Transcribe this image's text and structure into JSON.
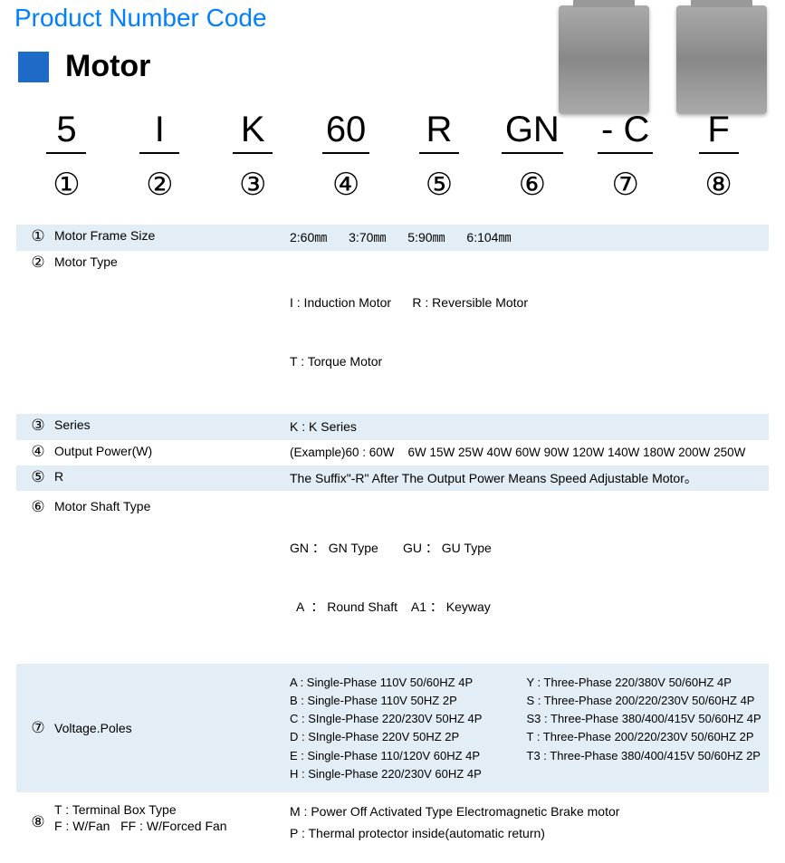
{
  "page_title": "Product Number Code",
  "section_title": "Motor",
  "code_parts": [
    {
      "char": "5",
      "circ": "①"
    },
    {
      "char": "I",
      "circ": "②"
    },
    {
      "char": "K",
      "circ": "③"
    },
    {
      "char": "60",
      "circ": "④"
    },
    {
      "char": "R",
      "circ": "⑤"
    },
    {
      "char": "GN",
      "circ": "⑥"
    },
    {
      "char": "- C",
      "circ": "⑦"
    },
    {
      "char": "F",
      "circ": "⑧"
    }
  ],
  "r1": {
    "idx": "①",
    "label": "Motor Frame Size",
    "v1": "2:60㎜",
    "v2": "3:70㎜",
    "v3": "5:90㎜",
    "v4": "6:104㎜"
  },
  "r2": {
    "idx": "②",
    "label": "Motor Type",
    "l1": "I : Induction Motor      R : Reversible Motor",
    "l2": "T : Torque Motor"
  },
  "r3": {
    "idx": "③",
    "label": "Series",
    "desc": "K : K Series"
  },
  "r4": {
    "idx": "④",
    "label": "Output Power(W)",
    "desc": "(Example)60 : 60W    6W 15W 25W 40W 60W 90W 120W 140W 180W 200W 250W"
  },
  "r5": {
    "idx": "⑤",
    "label": "R",
    "desc": "The Suffix\"-R\" After The Output Power Means Speed Adjustable Motor。"
  },
  "r6": {
    "idx": "⑥",
    "label": "Motor Shaft Type",
    "l1": "GN ： GN Type       GU ： GU Type",
    "l2": "  A  ： Round Shaft    A1 ： Keyway"
  },
  "r7": {
    "idx": "⑦",
    "label": "Voltage.Poles",
    "left": [
      "A : Single-Phase 110V 50/60HZ 4P",
      "B : Single-Phase 110V 50HZ   2P",
      "C : SIngle-Phase 220/230V 50HZ 4P",
      "D : SIngle-Phase 220V 50HZ 2P",
      "E : Single-Phase 110/120V 60HZ 4P",
      "H : Single-Phase 220/230V 60HZ 4P"
    ],
    "right": [
      "Y : Three-Phase 220/380V 50/60HZ 4P",
      "S : Three-Phase 200/220/230V 50/60HZ 4P",
      "S3 : Three-Phase 380/400/415V 50/60HZ 4P",
      "T : Three-Phase 200/220/230V 50/60HZ 2P",
      "T3 : Three-Phase 380/400/415V 50/60HZ 2P",
      ""
    ]
  },
  "r8": {
    "idx": "⑧",
    "label1": "T : Terminal Box Type",
    "label2": "F : W/Fan   FF : W/Forced Fan",
    "desc1": "M : Power Off Activated Type Electromagnetic Brake motor",
    "desc2": "P : Thermal protector inside(automatic return)"
  },
  "colors": {
    "title": "#0080ff",
    "band": "#e3edf5",
    "square": "#1e6bc7"
  }
}
